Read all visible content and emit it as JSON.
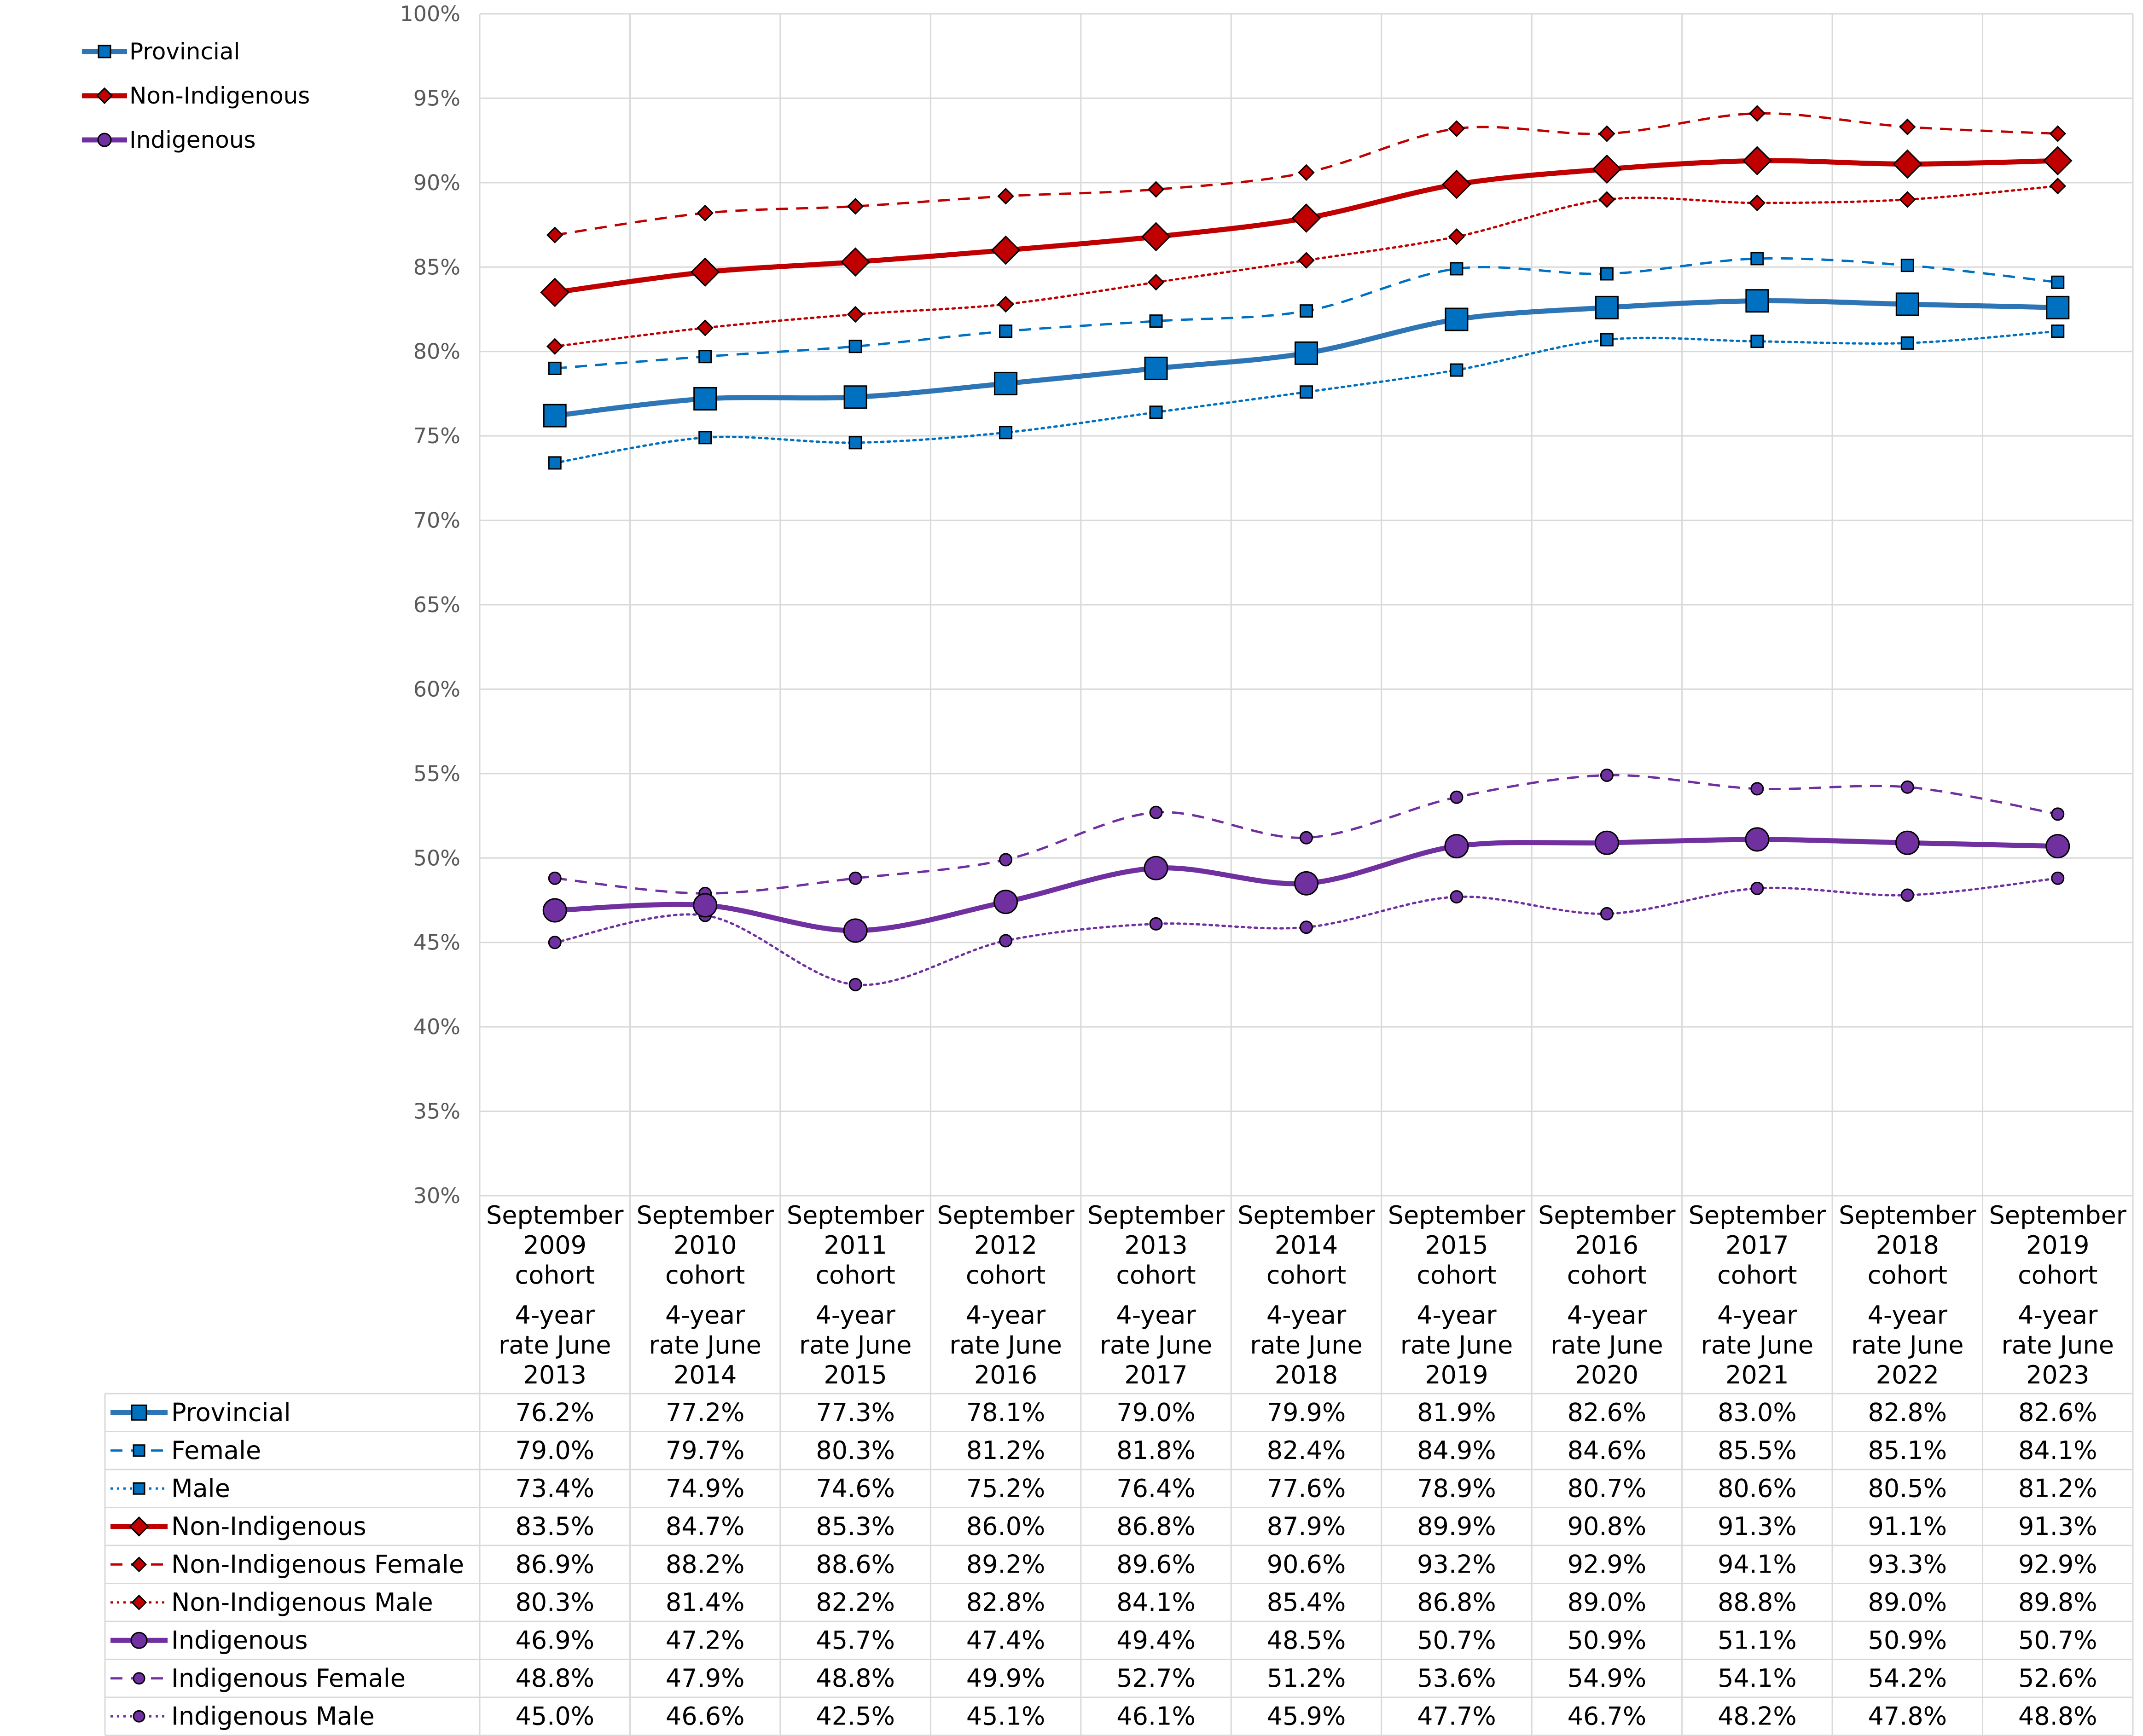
{
  "chart_data": {
    "type": "line",
    "title": "",
    "xlabel": "",
    "ylabel": "",
    "ylim": [
      0.3,
      1.0
    ],
    "y_ticks": [
      0.3,
      0.35,
      0.4,
      0.45,
      0.5,
      0.55,
      0.6,
      0.65,
      0.7,
      0.75,
      0.8,
      0.85,
      0.9,
      0.95,
      1.0
    ],
    "y_tick_labels": [
      "30%",
      "35%",
      "40%",
      "45%",
      "50%",
      "55%",
      "60%",
      "65%",
      "70%",
      "75%",
      "80%",
      "85%",
      "90%",
      "95%",
      "100%"
    ],
    "grid": true,
    "legend_position": "top-left",
    "categories": [
      [
        "September",
        "2009",
        "cohort",
        "4-year",
        "rate June",
        "2013"
      ],
      [
        "September",
        "2010",
        "cohort",
        "4-year",
        "rate June",
        "2014"
      ],
      [
        "September",
        "2011",
        "cohort",
        "4-year",
        "rate June",
        "2015"
      ],
      [
        "September",
        "2012",
        "cohort",
        "4-year",
        "rate June",
        "2016"
      ],
      [
        "September",
        "2013",
        "cohort",
        "4-year",
        "rate June",
        "2017"
      ],
      [
        "September",
        "2014",
        "cohort",
        "4-year",
        "rate June",
        "2018"
      ],
      [
        "September",
        "2015",
        "cohort",
        "4-year",
        "rate June",
        "2019"
      ],
      [
        "September",
        "2016",
        "cohort",
        "4-year",
        "rate June",
        "2020"
      ],
      [
        "September",
        "2017",
        "cohort",
        "4-year",
        "rate June",
        "2021"
      ],
      [
        "September",
        "2018",
        "cohort",
        "4-year",
        "rate June",
        "2022"
      ],
      [
        "September",
        "2019",
        "cohort",
        "4-year",
        "rate June",
        "2023"
      ]
    ],
    "series": [
      {
        "name": "Provincial",
        "color": "#2E75B6",
        "marker_color": "#0070C0",
        "dash": "solid",
        "marker": "square",
        "weight": "thick",
        "in_legend": true,
        "values": [
          0.762,
          0.772,
          0.773,
          0.781,
          0.79,
          0.799,
          0.819,
          0.826,
          0.83,
          0.828,
          0.826
        ],
        "labels": [
          "76.2%",
          "77.2%",
          "77.3%",
          "78.1%",
          "79.0%",
          "79.9%",
          "81.9%",
          "82.6%",
          "83.0%",
          "82.8%",
          "82.6%"
        ]
      },
      {
        "name": "Female",
        "color": "#0070C0",
        "marker_color": "#0070C0",
        "dash": "dash",
        "marker": "square",
        "weight": "thin",
        "in_legend": false,
        "values": [
          0.79,
          0.797,
          0.803,
          0.812,
          0.818,
          0.824,
          0.849,
          0.846,
          0.855,
          0.851,
          0.841
        ],
        "labels": [
          "79.0%",
          "79.7%",
          "80.3%",
          "81.2%",
          "81.8%",
          "82.4%",
          "84.9%",
          "84.6%",
          "85.5%",
          "85.1%",
          "84.1%"
        ]
      },
      {
        "name": "Male",
        "color": "#0070C0",
        "marker_color": "#0070C0",
        "dash": "dot",
        "marker": "square",
        "weight": "thin",
        "in_legend": false,
        "values": [
          0.734,
          0.749,
          0.746,
          0.752,
          0.764,
          0.776,
          0.789,
          0.807,
          0.806,
          0.805,
          0.812
        ],
        "labels": [
          "73.4%",
          "74.9%",
          "74.6%",
          "75.2%",
          "76.4%",
          "77.6%",
          "78.9%",
          "80.7%",
          "80.6%",
          "80.5%",
          "81.2%"
        ]
      },
      {
        "name": "Non-Indigenous",
        "color": "#C00000",
        "marker_color": "#C00000",
        "dash": "solid",
        "marker": "diamond",
        "weight": "thick",
        "in_legend": true,
        "values": [
          0.835,
          0.847,
          0.853,
          0.86,
          0.868,
          0.879,
          0.899,
          0.908,
          0.913,
          0.911,
          0.913
        ],
        "labels": [
          "83.5%",
          "84.7%",
          "85.3%",
          "86.0%",
          "86.8%",
          "87.9%",
          "89.9%",
          "90.8%",
          "91.3%",
          "91.1%",
          "91.3%"
        ]
      },
      {
        "name": "Non-Indigenous Female",
        "color": "#C00000",
        "marker_color": "#C00000",
        "dash": "dash",
        "marker": "diamond",
        "weight": "thin",
        "in_legend": false,
        "values": [
          0.869,
          0.882,
          0.886,
          0.892,
          0.896,
          0.906,
          0.932,
          0.929,
          0.941,
          0.933,
          0.929
        ],
        "labels": [
          "86.9%",
          "88.2%",
          "88.6%",
          "89.2%",
          "89.6%",
          "90.6%",
          "93.2%",
          "92.9%",
          "94.1%",
          "93.3%",
          "92.9%"
        ]
      },
      {
        "name": "Non-Indigenous Male",
        "color": "#C00000",
        "marker_color": "#C00000",
        "dash": "dot",
        "marker": "diamond",
        "weight": "thin",
        "in_legend": false,
        "values": [
          0.803,
          0.814,
          0.822,
          0.828,
          0.841,
          0.854,
          0.868,
          0.89,
          0.888,
          0.89,
          0.898
        ],
        "labels": [
          "80.3%",
          "81.4%",
          "82.2%",
          "82.8%",
          "84.1%",
          "85.4%",
          "86.8%",
          "89.0%",
          "88.8%",
          "89.0%",
          "89.8%"
        ]
      },
      {
        "name": "Indigenous",
        "color": "#7030A0",
        "marker_color": "#7030A0",
        "dash": "solid",
        "marker": "circle",
        "weight": "thick",
        "in_legend": true,
        "values": [
          0.469,
          0.472,
          0.457,
          0.474,
          0.494,
          0.485,
          0.507,
          0.509,
          0.511,
          0.509,
          0.507
        ],
        "labels": [
          "46.9%",
          "47.2%",
          "45.7%",
          "47.4%",
          "49.4%",
          "48.5%",
          "50.7%",
          "50.9%",
          "51.1%",
          "50.9%",
          "50.7%"
        ]
      },
      {
        "name": "Indigenous Female",
        "color": "#7030A0",
        "marker_color": "#7030A0",
        "dash": "dash",
        "marker": "circle",
        "weight": "thin",
        "in_legend": false,
        "values": [
          0.488,
          0.479,
          0.488,
          0.499,
          0.527,
          0.512,
          0.536,
          0.549,
          0.541,
          0.542,
          0.526
        ],
        "labels": [
          "48.8%",
          "47.9%",
          "48.8%",
          "49.9%",
          "52.7%",
          "51.2%",
          "53.6%",
          "54.9%",
          "54.1%",
          "54.2%",
          "52.6%"
        ]
      },
      {
        "name": "Indigenous Male",
        "color": "#7030A0",
        "marker_color": "#7030A0",
        "dash": "dot",
        "marker": "circle",
        "weight": "thin",
        "in_legend": false,
        "values": [
          0.45,
          0.466,
          0.425,
          0.451,
          0.461,
          0.459,
          0.477,
          0.467,
          0.482,
          0.478,
          0.488
        ],
        "labels": [
          "45.0%",
          "46.6%",
          "42.5%",
          "45.1%",
          "46.1%",
          "45.9%",
          "47.7%",
          "46.7%",
          "48.2%",
          "47.8%",
          "48.8%"
        ]
      }
    ]
  }
}
